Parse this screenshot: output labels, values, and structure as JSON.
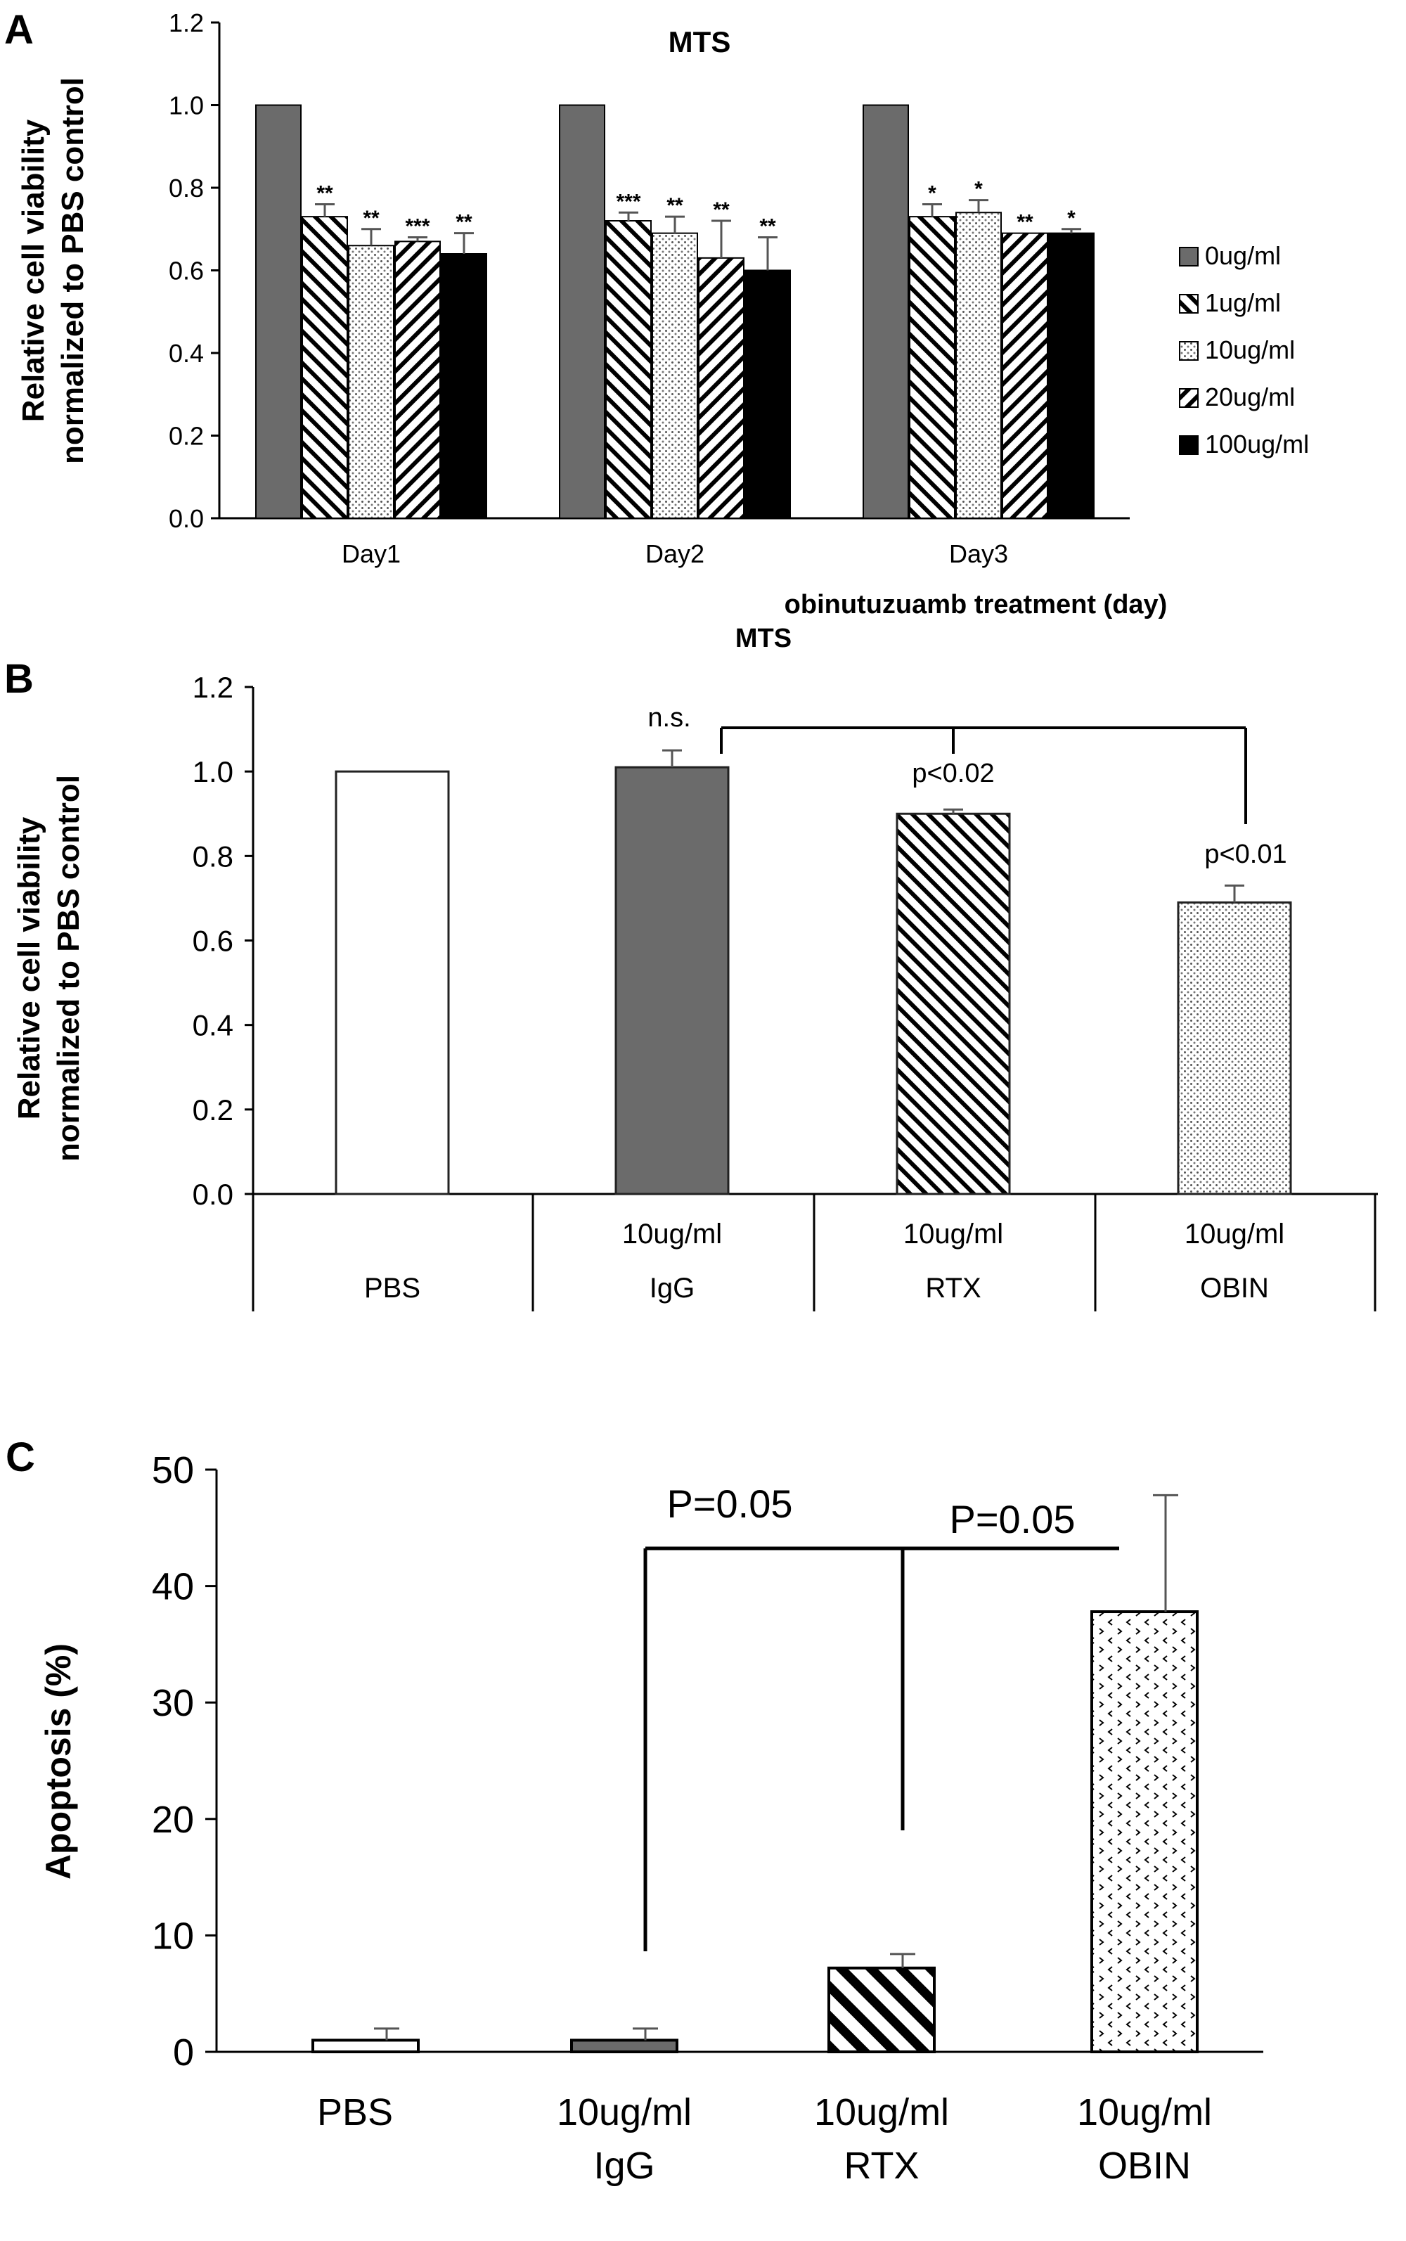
{
  "chart_data": [
    {
      "panel_label": "A",
      "type": "bar",
      "title": "MTS",
      "ylabel_lines": [
        "Relative cell viability",
        "normalized to PBS control"
      ],
      "xlabel": "obinutuzuamb treatment (day)",
      "categories": [
        "Day1",
        "Day2",
        "Day3"
      ],
      "ylim": [
        0,
        1.2
      ],
      "yticks": [
        "0.0",
        "0.2",
        "0.4",
        "0.6",
        "0.8",
        "1.0",
        "1.2"
      ],
      "legend_position": "right",
      "series": [
        {
          "name": "0ug/ml",
          "pattern": "gray",
          "values": [
            1.0,
            1.0,
            1.0
          ],
          "errors": [
            0,
            0,
            0
          ],
          "sig": [
            "",
            "",
            ""
          ]
        },
        {
          "name": "1ug/ml",
          "pattern": "hatch-fwd",
          "values": [
            0.73,
            0.72,
            0.73
          ],
          "errors": [
            0.03,
            0.02,
            0.03
          ],
          "sig": [
            "**",
            "***",
            "*"
          ]
        },
        {
          "name": "10ug/ml",
          "pattern": "dots",
          "values": [
            0.66,
            0.69,
            0.74
          ],
          "errors": [
            0.04,
            0.04,
            0.03
          ],
          "sig": [
            "**",
            "**",
            "*"
          ]
        },
        {
          "name": "20ug/ml",
          "pattern": "hatch-back",
          "values": [
            0.67,
            0.63,
            0.69
          ],
          "errors": [
            0.01,
            0.09,
            0.0
          ],
          "sig": [
            "***",
            "**",
            "**"
          ]
        },
        {
          "name": "100ug/ml",
          "pattern": "black",
          "values": [
            0.64,
            0.6,
            0.69
          ],
          "errors": [
            0.05,
            0.08,
            0.01
          ],
          "sig": [
            "**",
            "**",
            "*"
          ]
        }
      ]
    },
    {
      "panel_label": "B",
      "type": "bar",
      "title": "MTS",
      "ylabel_lines": [
        "Relative cell viability",
        "normalized to PBS control"
      ],
      "ylim": [
        0,
        1.2
      ],
      "yticks": [
        "0.0",
        "0.2",
        "0.4",
        "0.6",
        "0.8",
        "1.0",
        "1.2"
      ],
      "categories": [
        {
          "dose": "",
          "name": "PBS"
        },
        {
          "dose": "10ug/ml",
          "name": "IgG"
        },
        {
          "dose": "10ug/ml",
          "name": "RTX"
        },
        {
          "dose": "10ug/ml",
          "name": "OBIN"
        }
      ],
      "values": [
        1.0,
        1.01,
        0.9,
        0.69
      ],
      "errors": [
        0,
        0.04,
        0.01,
        0.04
      ],
      "patterns": [
        "white",
        "gray",
        "hatch-fwd",
        "dots"
      ],
      "annotations": [
        {
          "text": "n.s.",
          "bar": 1
        },
        {
          "text": "p<0.02",
          "bar": 2
        },
        {
          "text": "p<0.01",
          "bar": 3
        }
      ]
    },
    {
      "panel_label": "C",
      "type": "bar",
      "ylabel": "Apoptosis (%)",
      "ylim": [
        0,
        50
      ],
      "yticks": [
        "0",
        "10",
        "20",
        "30",
        "40",
        "50"
      ],
      "categories": [
        {
          "dose": "",
          "name": "PBS"
        },
        {
          "dose": "10ug/ml",
          "name": "IgG"
        },
        {
          "dose": "10ug/ml",
          "name": "RTX"
        },
        {
          "dose": "10ug/ml",
          "name": "OBIN"
        }
      ],
      "values": [
        1.0,
        1.0,
        7.2,
        37.8
      ],
      "errors": [
        1.0,
        1.0,
        1.2,
        10.0
      ],
      "patterns": [
        "white",
        "gray",
        "hatch-fwd-bold",
        "chevrons"
      ],
      "annotations": [
        {
          "text": "P=0.05"
        },
        {
          "text": "P=0.05"
        }
      ]
    }
  ]
}
